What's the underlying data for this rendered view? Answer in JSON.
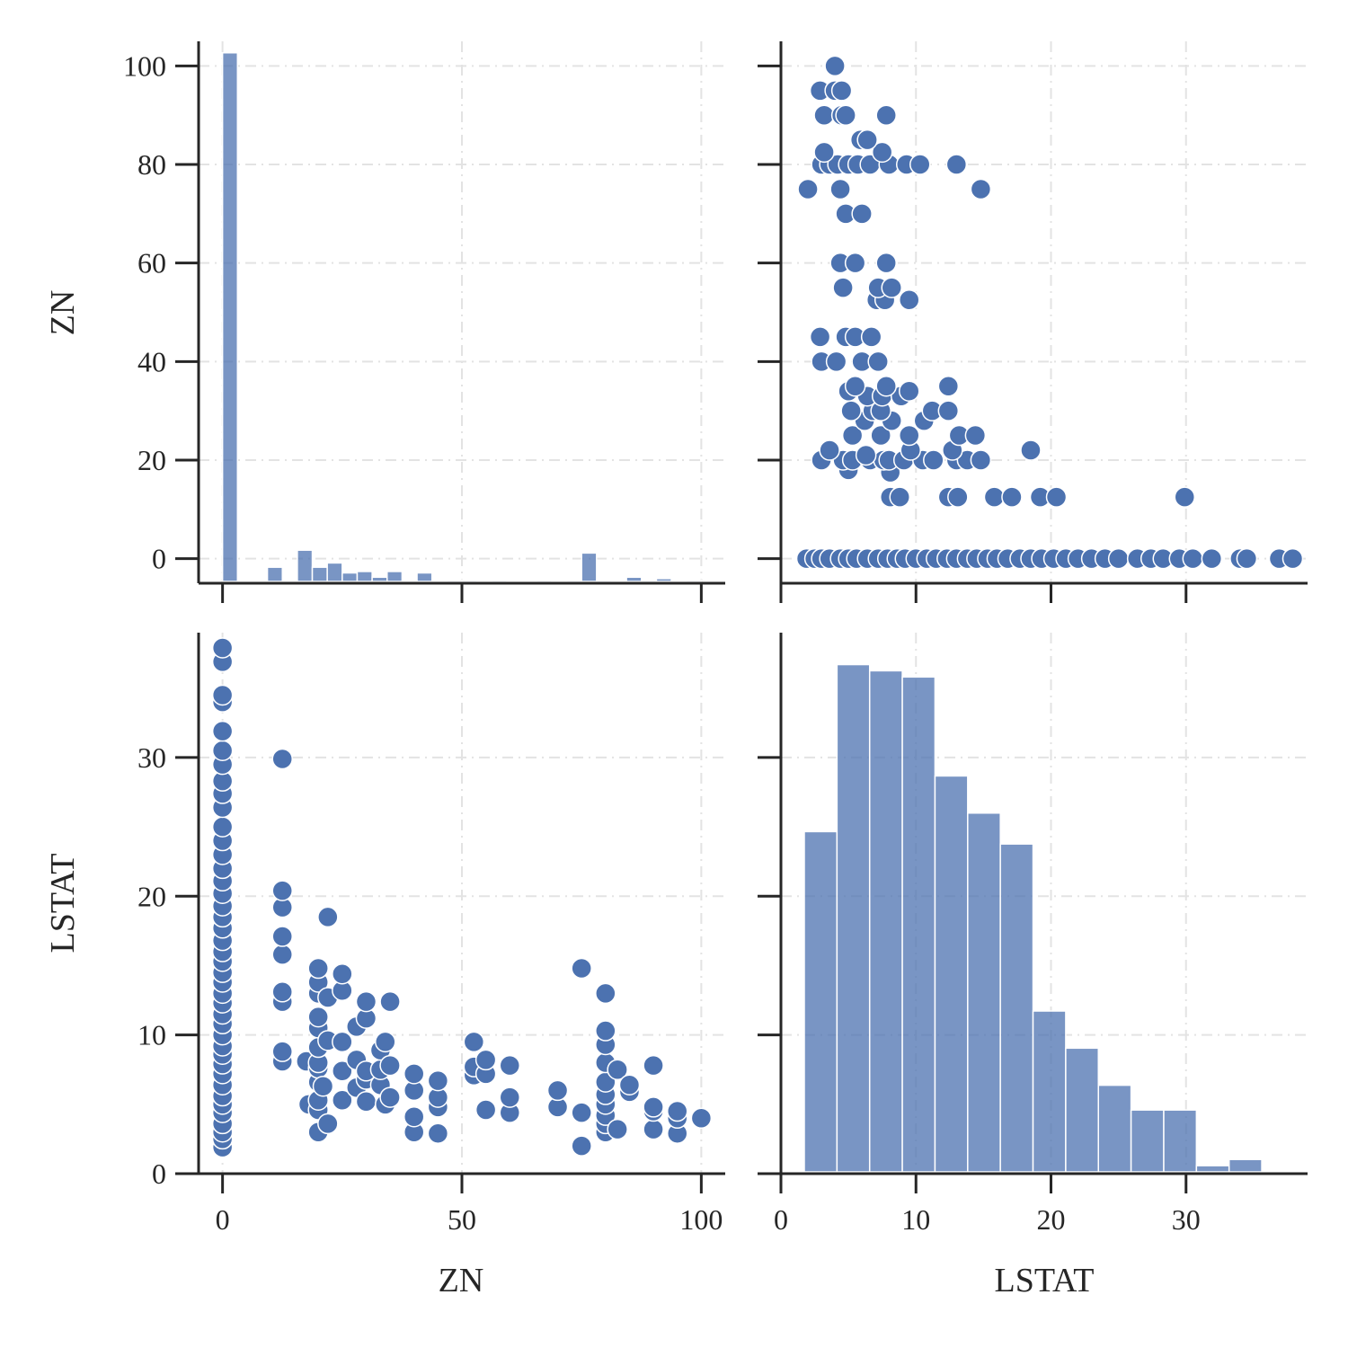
{
  "chart_data": {
    "type": "scatter",
    "variables": [
      "ZN",
      "LSTAT"
    ],
    "color": "#4c72b0",
    "grid": true,
    "axes": {
      "ZN": {
        "ticks": [
          0,
          50,
          100
        ],
        "y_ticks": [
          0,
          20,
          40,
          60,
          80,
          100
        ],
        "range": [
          -5,
          105
        ]
      },
      "LSTAT": {
        "ticks": [
          0,
          10,
          20,
          30
        ],
        "range": [
          0,
          39
        ]
      }
    },
    "xlabels": [
      "ZN",
      "LSTAT"
    ],
    "ylabels": [
      "ZN",
      "LSTAT"
    ],
    "hist_ZN": {
      "type": "bar",
      "bin_edges": [
        0,
        3.125,
        6.25,
        9.375,
        12.5,
        15.625,
        18.75,
        21.875,
        25,
        28.125,
        31.25,
        34.375,
        37.5,
        40.625,
        43.75,
        46.875,
        50,
        53.125,
        56.25,
        59.375,
        62.5,
        65.625,
        68.75,
        71.875,
        75,
        78.125,
        81.25,
        84.375,
        87.5,
        90.625,
        93.75,
        96.875,
        100
      ],
      "counts": [
        372,
        0,
        0,
        10,
        0,
        22,
        10,
        13,
        6,
        7,
        3,
        7,
        0,
        6,
        0,
        1,
        1,
        0,
        1,
        0,
        0,
        1,
        0,
        1,
        20,
        1,
        0,
        3,
        1,
        2,
        0,
        1
      ],
      "count_max": 375
    },
    "hist_LSTAT": {
      "type": "bar",
      "bin_edges": [
        1.73,
        4.15,
        6.57,
        8.99,
        11.41,
        13.83,
        16.25,
        18.67,
        21.09,
        23.51,
        25.93,
        28.35,
        30.77,
        33.19,
        35.61,
        38.03
      ],
      "counts": [
        55,
        82,
        81,
        80,
        64,
        58,
        53,
        26,
        20,
        14,
        10,
        10,
        1,
        2,
        0
      ],
      "count_max": 86
    },
    "scatter_points": [
      {
        "zn": 0,
        "lstat": 1.9
      },
      {
        "zn": 0,
        "lstat": 2.5
      },
      {
        "zn": 0,
        "lstat": 3.0
      },
      {
        "zn": 0,
        "lstat": 3.6
      },
      {
        "zn": 0,
        "lstat": 4.4
      },
      {
        "zn": 0,
        "lstat": 5.0
      },
      {
        "zn": 0,
        "lstat": 5.6
      },
      {
        "zn": 0,
        "lstat": 6.4
      },
      {
        "zn": 0,
        "lstat": 7.2
      },
      {
        "zn": 0,
        "lstat": 7.9
      },
      {
        "zn": 0,
        "lstat": 8.6
      },
      {
        "zn": 0,
        "lstat": 9.2
      },
      {
        "zn": 0,
        "lstat": 10.0
      },
      {
        "zn": 0,
        "lstat": 10.8
      },
      {
        "zn": 0,
        "lstat": 11.5
      },
      {
        "zn": 0,
        "lstat": 12.3
      },
      {
        "zn": 0,
        "lstat": 13.0
      },
      {
        "zn": 0,
        "lstat": 13.8
      },
      {
        "zn": 0,
        "lstat": 14.5
      },
      {
        "zn": 0,
        "lstat": 15.3
      },
      {
        "zn": 0,
        "lstat": 16.0
      },
      {
        "zn": 0,
        "lstat": 16.8
      },
      {
        "zn": 0,
        "lstat": 17.7
      },
      {
        "zn": 0,
        "lstat": 18.5
      },
      {
        "zn": 0,
        "lstat": 19.3
      },
      {
        "zn": 0,
        "lstat": 20.2
      },
      {
        "zn": 0,
        "lstat": 21.1
      },
      {
        "zn": 0,
        "lstat": 22.0
      },
      {
        "zn": 0,
        "lstat": 23.0
      },
      {
        "zn": 0,
        "lstat": 24.0
      },
      {
        "zn": 0,
        "lstat": 25.0
      },
      {
        "zn": 0,
        "lstat": 26.4
      },
      {
        "zn": 0,
        "lstat": 27.4
      },
      {
        "zn": 0,
        "lstat": 28.3
      },
      {
        "zn": 0,
        "lstat": 29.5
      },
      {
        "zn": 0,
        "lstat": 30.5
      },
      {
        "zn": 0,
        "lstat": 31.9
      },
      {
        "zn": 0,
        "lstat": 34.0
      },
      {
        "zn": 0,
        "lstat": 34.5
      },
      {
        "zn": 0,
        "lstat": 36.9
      },
      {
        "zn": 0,
        "lstat": 37.9
      },
      {
        "zn": 12.5,
        "lstat": 8.1
      },
      {
        "zn": 12.5,
        "lstat": 8.8
      },
      {
        "zn": 12.5,
        "lstat": 12.4
      },
      {
        "zn": 12.5,
        "lstat": 13.1
      },
      {
        "zn": 12.5,
        "lstat": 15.8
      },
      {
        "zn": 12.5,
        "lstat": 17.1
      },
      {
        "zn": 12.5,
        "lstat": 19.2
      },
      {
        "zn": 12.5,
        "lstat": 20.4
      },
      {
        "zn": 12.5,
        "lstat": 29.9
      },
      {
        "zn": 17.5,
        "lstat": 8.1
      },
      {
        "zn": 18,
        "lstat": 5.0
      },
      {
        "zn": 20,
        "lstat": 3.0
      },
      {
        "zn": 20,
        "lstat": 4.6
      },
      {
        "zn": 20,
        "lstat": 5.3
      },
      {
        "zn": 20,
        "lstat": 6.6
      },
      {
        "zn": 20,
        "lstat": 7.6
      },
      {
        "zn": 20,
        "lstat": 8.0
      },
      {
        "zn": 20,
        "lstat": 9.1
      },
      {
        "zn": 20,
        "lstat": 10.5
      },
      {
        "zn": 20,
        "lstat": 11.3
      },
      {
        "zn": 20,
        "lstat": 13.0
      },
      {
        "zn": 20,
        "lstat": 13.8
      },
      {
        "zn": 20,
        "lstat": 14.8
      },
      {
        "zn": 21,
        "lstat": 6.3
      },
      {
        "zn": 22,
        "lstat": 3.6
      },
      {
        "zn": 22,
        "lstat": 9.6
      },
      {
        "zn": 22,
        "lstat": 12.7
      },
      {
        "zn": 22,
        "lstat": 18.5
      },
      {
        "zn": 25,
        "lstat": 5.3
      },
      {
        "zn": 25,
        "lstat": 7.4
      },
      {
        "zn": 25,
        "lstat": 9.5
      },
      {
        "zn": 25,
        "lstat": 13.2
      },
      {
        "zn": 25,
        "lstat": 14.4
      },
      {
        "zn": 28,
        "lstat": 6.2
      },
      {
        "zn": 28,
        "lstat": 8.2
      },
      {
        "zn": 28,
        "lstat": 10.6
      },
      {
        "zn": 30,
        "lstat": 5.2
      },
      {
        "zn": 30,
        "lstat": 6.8
      },
      {
        "zn": 30,
        "lstat": 7.4
      },
      {
        "zn": 30,
        "lstat": 11.2
      },
      {
        "zn": 30,
        "lstat": 12.4
      },
      {
        "zn": 33,
        "lstat": 6.4
      },
      {
        "zn": 33,
        "lstat": 7.5
      },
      {
        "zn": 33,
        "lstat": 8.9
      },
      {
        "zn": 34,
        "lstat": 5.0
      },
      {
        "zn": 34,
        "lstat": 9.5
      },
      {
        "zn": 35,
        "lstat": 5.5
      },
      {
        "zn": 35,
        "lstat": 7.8
      },
      {
        "zn": 35,
        "lstat": 12.4
      },
      {
        "zn": 40,
        "lstat": 3.0
      },
      {
        "zn": 40,
        "lstat": 4.1
      },
      {
        "zn": 40,
        "lstat": 6.0
      },
      {
        "zn": 40,
        "lstat": 7.2
      },
      {
        "zn": 45,
        "lstat": 2.9
      },
      {
        "zn": 45,
        "lstat": 4.8
      },
      {
        "zn": 45,
        "lstat": 5.5
      },
      {
        "zn": 45,
        "lstat": 6.7
      },
      {
        "zn": 52.5,
        "lstat": 7.1
      },
      {
        "zn": 52.5,
        "lstat": 7.7
      },
      {
        "zn": 52.5,
        "lstat": 9.5
      },
      {
        "zn": 55,
        "lstat": 4.6
      },
      {
        "zn": 55,
        "lstat": 7.2
      },
      {
        "zn": 55,
        "lstat": 8.2
      },
      {
        "zn": 60,
        "lstat": 4.4
      },
      {
        "zn": 60,
        "lstat": 5.5
      },
      {
        "zn": 60,
        "lstat": 7.8
      },
      {
        "zn": 70,
        "lstat": 4.8
      },
      {
        "zn": 70,
        "lstat": 6.0
      },
      {
        "zn": 75,
        "lstat": 2.0
      },
      {
        "zn": 75,
        "lstat": 4.4
      },
      {
        "zn": 75,
        "lstat": 14.8
      },
      {
        "zn": 80,
        "lstat": 3.0
      },
      {
        "zn": 80,
        "lstat": 3.6
      },
      {
        "zn": 80,
        "lstat": 4.2
      },
      {
        "zn": 80,
        "lstat": 5.0
      },
      {
        "zn": 80,
        "lstat": 5.7
      },
      {
        "zn": 80,
        "lstat": 6.6
      },
      {
        "zn": 80,
        "lstat": 8.0
      },
      {
        "zn": 80,
        "lstat": 9.3
      },
      {
        "zn": 80,
        "lstat": 10.3
      },
      {
        "zn": 80,
        "lstat": 13.0
      },
      {
        "zn": 82.5,
        "lstat": 3.2
      },
      {
        "zn": 82.5,
        "lstat": 7.5
      },
      {
        "zn": 85,
        "lstat": 5.9
      },
      {
        "zn": 85,
        "lstat": 6.4
      },
      {
        "zn": 90,
        "lstat": 3.2
      },
      {
        "zn": 90,
        "lstat": 4.5
      },
      {
        "zn": 90,
        "lstat": 4.8
      },
      {
        "zn": 90,
        "lstat": 7.8
      },
      {
        "zn": 95,
        "lstat": 2.9
      },
      {
        "zn": 95,
        "lstat": 4.0
      },
      {
        "zn": 95,
        "lstat": 4.5
      },
      {
        "zn": 100,
        "lstat": 4.0
      }
    ]
  }
}
